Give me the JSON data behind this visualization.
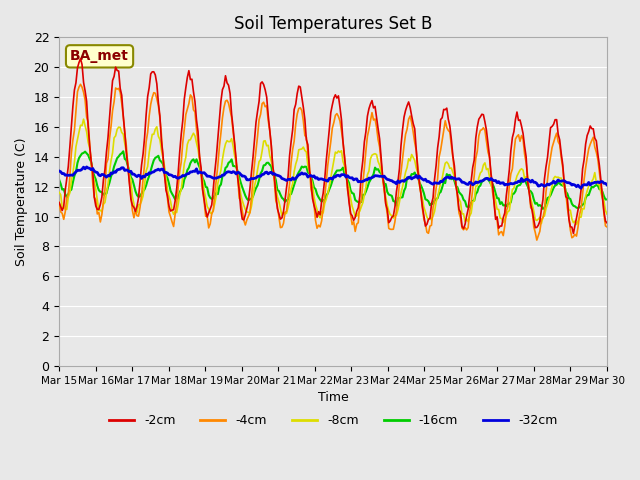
{
  "title": "Soil Temperatures Set B",
  "xlabel": "Time",
  "ylabel": "Soil Temperature (C)",
  "ylim": [
    0,
    22
  ],
  "yticks": [
    0,
    2,
    4,
    6,
    8,
    10,
    12,
    14,
    16,
    18,
    20,
    22
  ],
  "colors": {
    "-2cm": "#dd0000",
    "-4cm": "#ff8800",
    "-8cm": "#dddd00",
    "-16cm": "#00cc00",
    "-32cm": "#0000dd"
  },
  "legend_labels": [
    "-2cm",
    "-4cm",
    "-8cm",
    "-16cm",
    "-32cm"
  ],
  "annotation": "BA_met",
  "annotation_bg": "#ffffcc",
  "annotation_border": "#888800",
  "background_color": "#e8e8e8",
  "plot_bg": "#e8e8e8",
  "grid_color": "#ffffff",
  "xtick_labels": [
    "Mar 15",
    "Mar 16",
    "Mar 17",
    "Mar 18",
    "Mar 19",
    "Mar 20",
    "Mar 21",
    "Mar 22",
    "Mar 23",
    "Mar 24",
    "Mar 25",
    "Mar 26",
    "Mar 27",
    "Mar 28",
    "Mar 29",
    "Mar 30"
  ],
  "num_points": 360
}
